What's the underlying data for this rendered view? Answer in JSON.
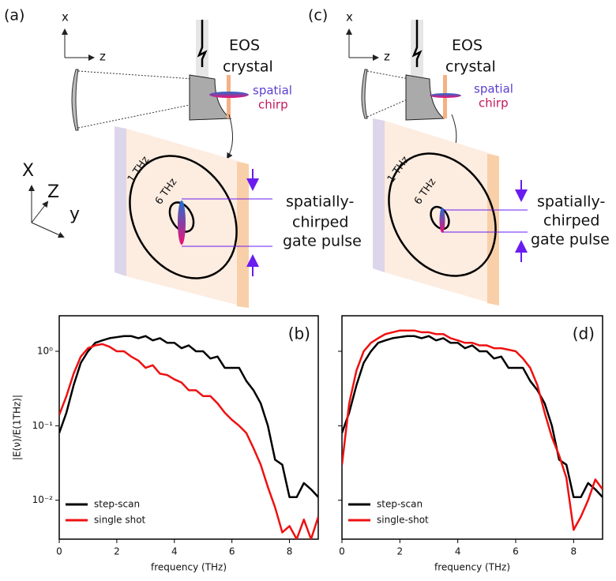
{
  "diagrams": [
    {
      "panel": "(a)",
      "axis_x": "x",
      "axis_z": "z",
      "eos": [
        "EOS",
        "crystal"
      ],
      "chirp": [
        "spatial",
        "chirp"
      ],
      "axes3d": [
        "X",
        "Z",
        "y"
      ],
      "outer": "1 THz",
      "inner": "6 THz",
      "gate": [
        "spatially-",
        "chirped",
        "gate pulse"
      ]
    },
    {
      "panel": "(c)",
      "axis_x": "x",
      "axis_z": "z",
      "eos": [
        "EOS",
        "crystal"
      ],
      "chirp": [
        "spatial",
        "chirp"
      ],
      "outer": "1 THz",
      "inner": "6 THz",
      "gate": [
        "spatially-",
        "chirped",
        "gate pulse"
      ]
    }
  ],
  "chart_data": [
    {
      "type": "line",
      "panel_label": "(b)",
      "ylabel": "|E(ν)/E(1THz)|",
      "xlabel": "frequency (THz)",
      "log_y": true,
      "legend": "lower left",
      "xlim": [
        0,
        9
      ],
      "ylim": [
        0.003,
        3
      ],
      "xticks": [
        0,
        2,
        4,
        6,
        8
      ],
      "yticks": [
        {
          "value": 0.01,
          "label": "10⁻²"
        },
        {
          "value": 0.1,
          "label": "10⁻¹"
        },
        {
          "value": 1,
          "label": "10⁰"
        }
      ],
      "x": [
        0,
        0.25,
        0.5,
        0.75,
        1,
        1.25,
        1.5,
        1.75,
        2,
        2.25,
        2.5,
        2.75,
        3,
        3.25,
        3.5,
        3.75,
        4,
        4.25,
        4.5,
        4.75,
        5,
        5.25,
        5.5,
        5.75,
        6,
        6.25,
        6.5,
        6.75,
        7,
        7.25,
        7.5,
        7.75,
        8,
        8.25,
        8.5,
        8.75,
        9
      ],
      "series": [
        {
          "name": "step-scan",
          "color": "#000000",
          "values": [
            0.08,
            0.15,
            0.35,
            0.7,
            1.0,
            1.3,
            1.4,
            1.5,
            1.55,
            1.6,
            1.6,
            1.5,
            1.6,
            1.4,
            1.5,
            1.3,
            1.3,
            1.1,
            1.2,
            1.0,
            1.0,
            0.8,
            0.85,
            0.6,
            0.6,
            0.6,
            0.4,
            0.3,
            0.2,
            0.1,
            0.035,
            0.03,
            0.011,
            0.011,
            0.017,
            0.014,
            0.011
          ]
        },
        {
          "name": "single shot",
          "color": "#ee1111",
          "values": [
            0.14,
            0.25,
            0.5,
            0.85,
            1.1,
            1.2,
            1.25,
            1.15,
            1.0,
            1.0,
            0.85,
            0.75,
            0.6,
            0.65,
            0.5,
            0.48,
            0.42,
            0.38,
            0.3,
            0.3,
            0.25,
            0.25,
            0.2,
            0.15,
            0.12,
            0.1,
            0.08,
            0.05,
            0.03,
            0.015,
            0.008,
            0.0037,
            0.0045,
            0.003,
            0.0055,
            0.003,
            0.006
          ]
        }
      ]
    },
    {
      "type": "line",
      "panel_label": "(d)",
      "xlabel": "frequency (THz)",
      "log_y": true,
      "legend": "lower left",
      "xlim": [
        0,
        9
      ],
      "ylim": [
        0.003,
        3
      ],
      "xticks": [
        0,
        2,
        4,
        6,
        8
      ],
      "yticks": [
        0.01,
        0.1,
        1
      ],
      "x": [
        0,
        0.25,
        0.5,
        0.75,
        1,
        1.25,
        1.5,
        1.75,
        2,
        2.25,
        2.5,
        2.75,
        3,
        3.25,
        3.5,
        3.75,
        4,
        4.25,
        4.5,
        4.75,
        5,
        5.25,
        5.5,
        5.75,
        6,
        6.25,
        6.5,
        6.75,
        7,
        7.25,
        7.5,
        7.75,
        8,
        8.25,
        8.5,
        8.75,
        9
      ],
      "series": [
        {
          "name": "step-scan",
          "color": "#000000",
          "values": [
            0.08,
            0.15,
            0.35,
            0.7,
            1.0,
            1.3,
            1.4,
            1.5,
            1.55,
            1.6,
            1.6,
            1.5,
            1.6,
            1.4,
            1.5,
            1.3,
            1.3,
            1.1,
            1.2,
            1.0,
            1.0,
            0.8,
            0.85,
            0.6,
            0.6,
            0.6,
            0.4,
            0.3,
            0.2,
            0.1,
            0.035,
            0.03,
            0.011,
            0.011,
            0.017,
            0.014,
            0.011
          ]
        },
        {
          "name": "single-shot",
          "color": "#ee1111",
          "values": [
            0.03,
            0.2,
            0.55,
            1.0,
            1.3,
            1.5,
            1.7,
            1.8,
            1.9,
            1.9,
            1.9,
            1.8,
            1.8,
            1.7,
            1.7,
            1.5,
            1.4,
            1.3,
            1.3,
            1.2,
            1.2,
            1.1,
            1.1,
            1.05,
            1.0,
            0.8,
            0.6,
            0.35,
            0.15,
            0.07,
            0.04,
            0.02,
            0.004,
            0.006,
            0.01,
            0.019,
            0.014
          ]
        }
      ]
    }
  ]
}
